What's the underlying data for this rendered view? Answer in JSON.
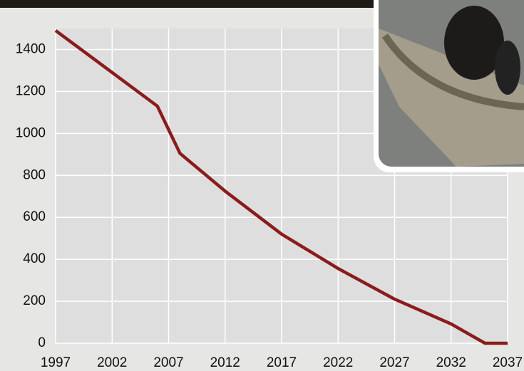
{
  "chart_data": {
    "type": "line",
    "x": [
      1997,
      2006,
      2008,
      2012,
      2017,
      2022,
      2027,
      2032,
      2035,
      2037
    ],
    "values": [
      1490,
      1130,
      905,
      725,
      520,
      356,
      210,
      92,
      0,
      0
    ],
    "color": "#8b1c1c",
    "xlim": [
      1997,
      2037
    ],
    "xticks": [
      1997,
      2002,
      2007,
      2012,
      2017,
      2022,
      2027,
      2032,
      2037
    ],
    "ylim": [
      0,
      1500
    ],
    "yticks": [
      0,
      200,
      400,
      600,
      800,
      1000,
      1200,
      1400
    ],
    "grid": true
  }
}
